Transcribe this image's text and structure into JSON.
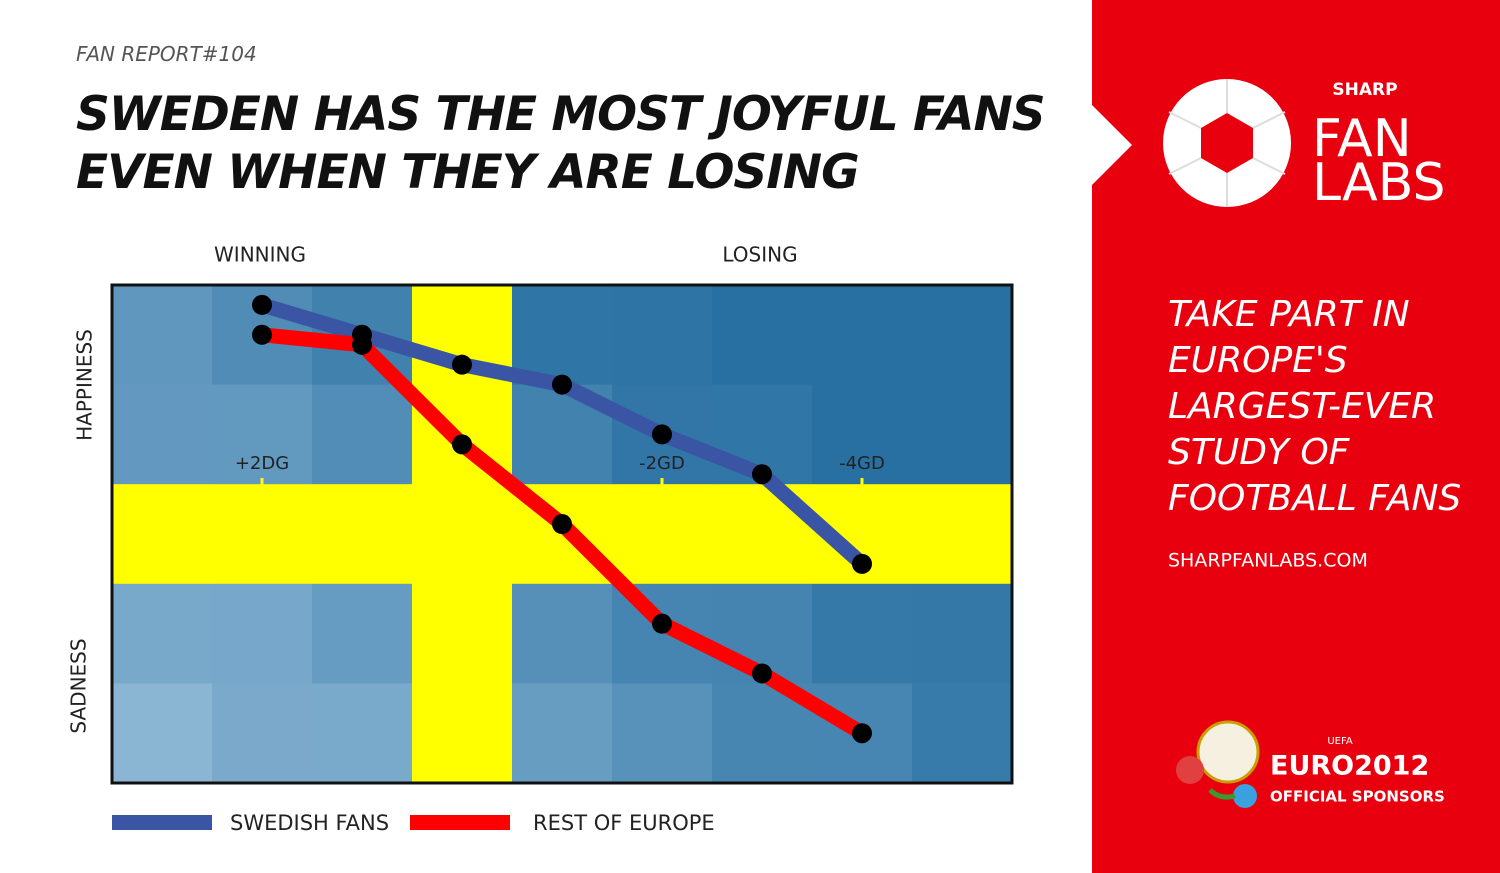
{
  "chart_data": {
    "type": "line",
    "subtitle": "FAN REPORT#104",
    "title": "SWEDEN HAS THE MOST JOYFUL FANS EVEN WHEN THEY ARE LOSING",
    "top_labels": [
      "WINNING",
      "LOSING"
    ],
    "y_labels": [
      "HAPPINESS",
      "SADNESS"
    ],
    "x": [
      2,
      1,
      0,
      -1,
      -2,
      -3,
      -4
    ],
    "xlim": [
      3.5,
      -5.5
    ],
    "xticks": [
      {
        "value": 2,
        "label": "+2DG"
      },
      {
        "value": -2,
        "label": "-2GD"
      },
      {
        "value": -4,
        "label": "-4GD"
      }
    ],
    "ylim": [
      0,
      5
    ],
    "series": [
      {
        "name": "SWEDISH FANS",
        "color": "#3a55a4",
        "values": [
          4.8,
          4.5,
          4.2,
          4.0,
          3.5,
          3.1,
          2.2
        ]
      },
      {
        "name": "REST OF EUROPE",
        "color": "#ff0000",
        "values": [
          4.5,
          4.4,
          3.4,
          2.6,
          1.6,
          1.1,
          0.5
        ]
      }
    ]
  },
  "sidebar": {
    "brand": "SHARP",
    "logo_lines": [
      "FAN",
      "LABS"
    ],
    "promo": [
      "TAKE PART IN",
      "EUROPE'S",
      "LARGEST-EVER",
      "STUDY OF",
      "FOOTBALL FANS"
    ],
    "url": "SHARPFANLABS.COM",
    "uefa": "UEFA",
    "euro": "EURO2012",
    "sponsor": "OFFICIAL SPONSORS"
  }
}
